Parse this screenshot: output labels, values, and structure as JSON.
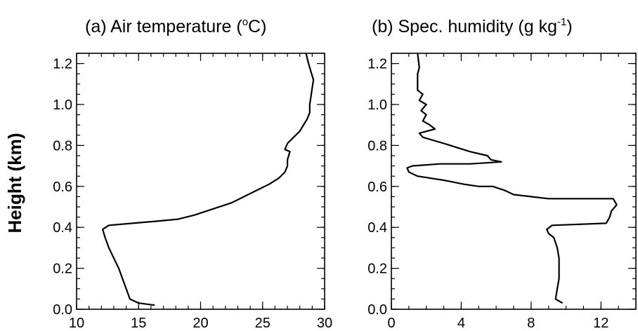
{
  "chart_data": [
    {
      "type": "line",
      "title": "(a) Air temperature (",
      "title_sup": "o",
      "title_end": "C)",
      "xlabel": "",
      "ylabel": "Height (km)",
      "xlim": [
        10,
        30
      ],
      "ylim": [
        0.0,
        1.25
      ],
      "x_ticks": [
        "10",
        "15",
        "20",
        "25",
        "30"
      ],
      "y_ticks": [
        "0.0",
        "0.2",
        "0.4",
        "0.6",
        "0.8",
        "1.0",
        "1.2"
      ],
      "series": [
        {
          "x": [
            16.3,
            15.0,
            14.3,
            14.0,
            13.7,
            13.4,
            13.0,
            12.6,
            12.3,
            12.1,
            12.6,
            14.5,
            16.5,
            18.2,
            19.5,
            21.0,
            22.5,
            23.5,
            24.5,
            25.5,
            26.3,
            26.8,
            27.0,
            27.0,
            27.2,
            26.8,
            27.0,
            27.5,
            28.0,
            28.3,
            28.6,
            28.8,
            28.8,
            28.9,
            29.0,
            29.1,
            28.9,
            28.7,
            28.5
          ],
          "y": [
            0.02,
            0.03,
            0.05,
            0.1,
            0.15,
            0.2,
            0.25,
            0.3,
            0.35,
            0.39,
            0.41,
            0.42,
            0.43,
            0.44,
            0.46,
            0.49,
            0.52,
            0.55,
            0.58,
            0.61,
            0.64,
            0.67,
            0.7,
            0.73,
            0.77,
            0.78,
            0.81,
            0.84,
            0.87,
            0.9,
            0.93,
            0.96,
            1.0,
            1.04,
            1.08,
            1.12,
            1.16,
            1.2,
            1.25
          ]
        }
      ]
    },
    {
      "type": "line",
      "title": "(b) Spec. humidity (g kg",
      "title_sup": "-1",
      "title_end": ")",
      "xlabel": "",
      "ylabel": "",
      "xlim": [
        0,
        14
      ],
      "ylim": [
        0.0,
        1.25
      ],
      "x_ticks": [
        "0",
        "4",
        "8",
        "12"
      ],
      "x_tick_values": [
        0,
        4,
        8,
        12
      ],
      "y_ticks": [
        "0.0",
        "0.2",
        "0.4",
        "0.6",
        "0.8",
        "1.0",
        "1.2"
      ],
      "series": [
        {
          "x": [
            9.8,
            9.4,
            9.5,
            9.6,
            9.6,
            9.5,
            9.3,
            9.0,
            8.9,
            9.2,
            12.3,
            12.5,
            12.6,
            12.9,
            12.7,
            9.0,
            7.0,
            6.5,
            5.8,
            5.0,
            4.2,
            3.0,
            1.5,
            1.0,
            0.9,
            1.2,
            2.8,
            4.5,
            6.3,
            5.7,
            5.5,
            4.5,
            3.0,
            1.8,
            1.6,
            2.5,
            2.2,
            1.8,
            2.0,
            1.7,
            2.0,
            1.6,
            1.8,
            1.5,
            1.5,
            1.6,
            1.5
          ],
          "y": [
            0.03,
            0.05,
            0.1,
            0.15,
            0.25,
            0.3,
            0.35,
            0.37,
            0.39,
            0.41,
            0.42,
            0.45,
            0.48,
            0.51,
            0.54,
            0.54,
            0.56,
            0.58,
            0.6,
            0.6,
            0.61,
            0.63,
            0.65,
            0.67,
            0.69,
            0.7,
            0.71,
            0.71,
            0.72,
            0.73,
            0.75,
            0.77,
            0.81,
            0.84,
            0.86,
            0.88,
            0.9,
            0.92,
            0.95,
            0.97,
            1.0,
            1.02,
            1.05,
            1.07,
            1.15,
            1.18,
            1.25
          ]
        }
      ]
    }
  ]
}
